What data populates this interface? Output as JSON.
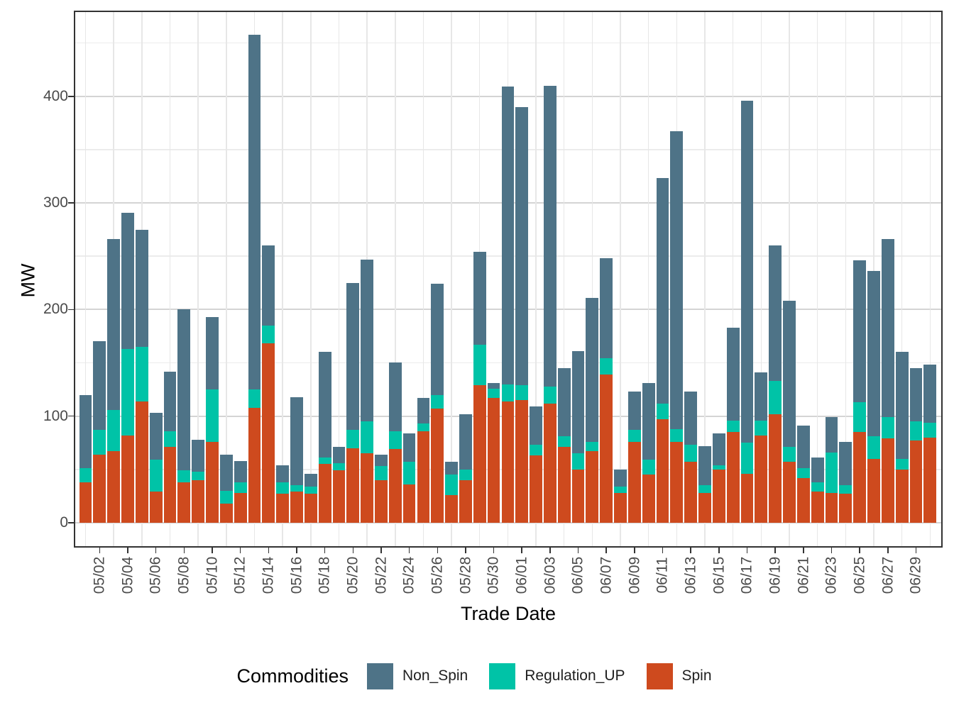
{
  "chart_data": {
    "type": "bar",
    "stacked": true,
    "title": "",
    "xlabel": "Trade Date",
    "ylabel": "MW",
    "ylim": [
      -23,
      480
    ],
    "yticks": [
      0,
      100,
      200,
      300,
      400
    ],
    "yticks_minor": [
      50,
      150,
      250,
      350,
      450
    ],
    "grid": "major-and-minor",
    "legend": {
      "title": "Commodities",
      "position": "bottom",
      "entries": [
        "Non_Spin",
        "Regulation_UP",
        "Spin"
      ]
    },
    "colors": {
      "Non_Spin": "#4E7387",
      "Regulation_UP": "#00C3A7",
      "Spin": "#CE4A1E"
    },
    "x_tick_labels": [
      "05/02",
      "05/04",
      "05/06",
      "05/08",
      "05/10",
      "05/12",
      "05/14",
      "05/16",
      "05/18",
      "05/20",
      "05/22",
      "05/24",
      "05/26",
      "05/28",
      "05/30",
      "06/01",
      "06/03",
      "06/05",
      "06/07",
      "06/09",
      "06/11",
      "06/13",
      "06/15",
      "06/17",
      "06/19",
      "06/21",
      "06/23",
      "06/25",
      "06/27",
      "06/29"
    ],
    "categories": [
      "05/01",
      "05/02",
      "05/03",
      "05/04",
      "05/05",
      "05/06",
      "05/07",
      "05/08",
      "05/09",
      "05/10",
      "05/11",
      "05/12",
      "05/13",
      "05/14",
      "05/15",
      "05/16",
      "05/17",
      "05/18",
      "05/19",
      "05/20",
      "05/21",
      "05/22",
      "05/23",
      "05/24",
      "05/25",
      "05/26",
      "05/27",
      "05/28",
      "05/29",
      "05/30",
      "05/31",
      "06/01",
      "06/02",
      "06/03",
      "06/04",
      "06/05",
      "06/06",
      "06/07",
      "06/08",
      "06/09",
      "06/10",
      "06/11",
      "06/12",
      "06/13",
      "06/14",
      "06/15",
      "06/16",
      "06/17",
      "06/18",
      "06/19",
      "06/20",
      "06/21",
      "06/22",
      "06/23",
      "06/24",
      "06/25",
      "06/26",
      "06/27",
      "06/28",
      "06/29",
      "06/30"
    ],
    "series": [
      {
        "name": "Spin",
        "stack_position": "bottom",
        "values": [
          38,
          64,
          67,
          82,
          114,
          29,
          71,
          38,
          40,
          76,
          18,
          28,
          108,
          168,
          27,
          29,
          27,
          55,
          49,
          70,
          65,
          40,
          69,
          36,
          86,
          107,
          26,
          40,
          129,
          117,
          114,
          115,
          63,
          112,
          71,
          50,
          67,
          139,
          28,
          76,
          45,
          97,
          76,
          57,
          28,
          50,
          85,
          46,
          82,
          102,
          57,
          42,
          29,
          28,
          27,
          85,
          60,
          79,
          50,
          77,
          80
        ]
      },
      {
        "name": "Regulation_UP",
        "stack_position": "middle",
        "values": [
          13,
          23,
          39,
          81,
          51,
          30,
          15,
          11,
          8,
          49,
          12,
          10,
          17,
          17,
          11,
          6,
          7,
          6,
          7,
          17,
          30,
          13,
          17,
          21,
          7,
          13,
          19,
          10,
          38,
          9,
          16,
          14,
          10,
          16,
          10,
          15,
          9,
          15,
          6,
          11,
          14,
          15,
          12,
          16,
          7,
          4,
          11,
          29,
          14,
          31,
          14,
          9,
          9,
          38,
          8,
          28,
          21,
          20,
          10,
          18,
          14
        ]
      },
      {
        "name": "Non_Spin",
        "stack_position": "top",
        "values": [
          69,
          83,
          160,
          128,
          110,
          44,
          56,
          151,
          30,
          68,
          34,
          20,
          333,
          75,
          16,
          83,
          12,
          99,
          15,
          138,
          152,
          11,
          64,
          27,
          24,
          104,
          12,
          52,
          87,
          5,
          279,
          261,
          36,
          282,
          64,
          96,
          135,
          94,
          16,
          36,
          72,
          211,
          279,
          50,
          37,
          30,
          87,
          321,
          45,
          127,
          137,
          40,
          23,
          33,
          41,
          133,
          155,
          167,
          100,
          50,
          54
        ]
      }
    ]
  }
}
